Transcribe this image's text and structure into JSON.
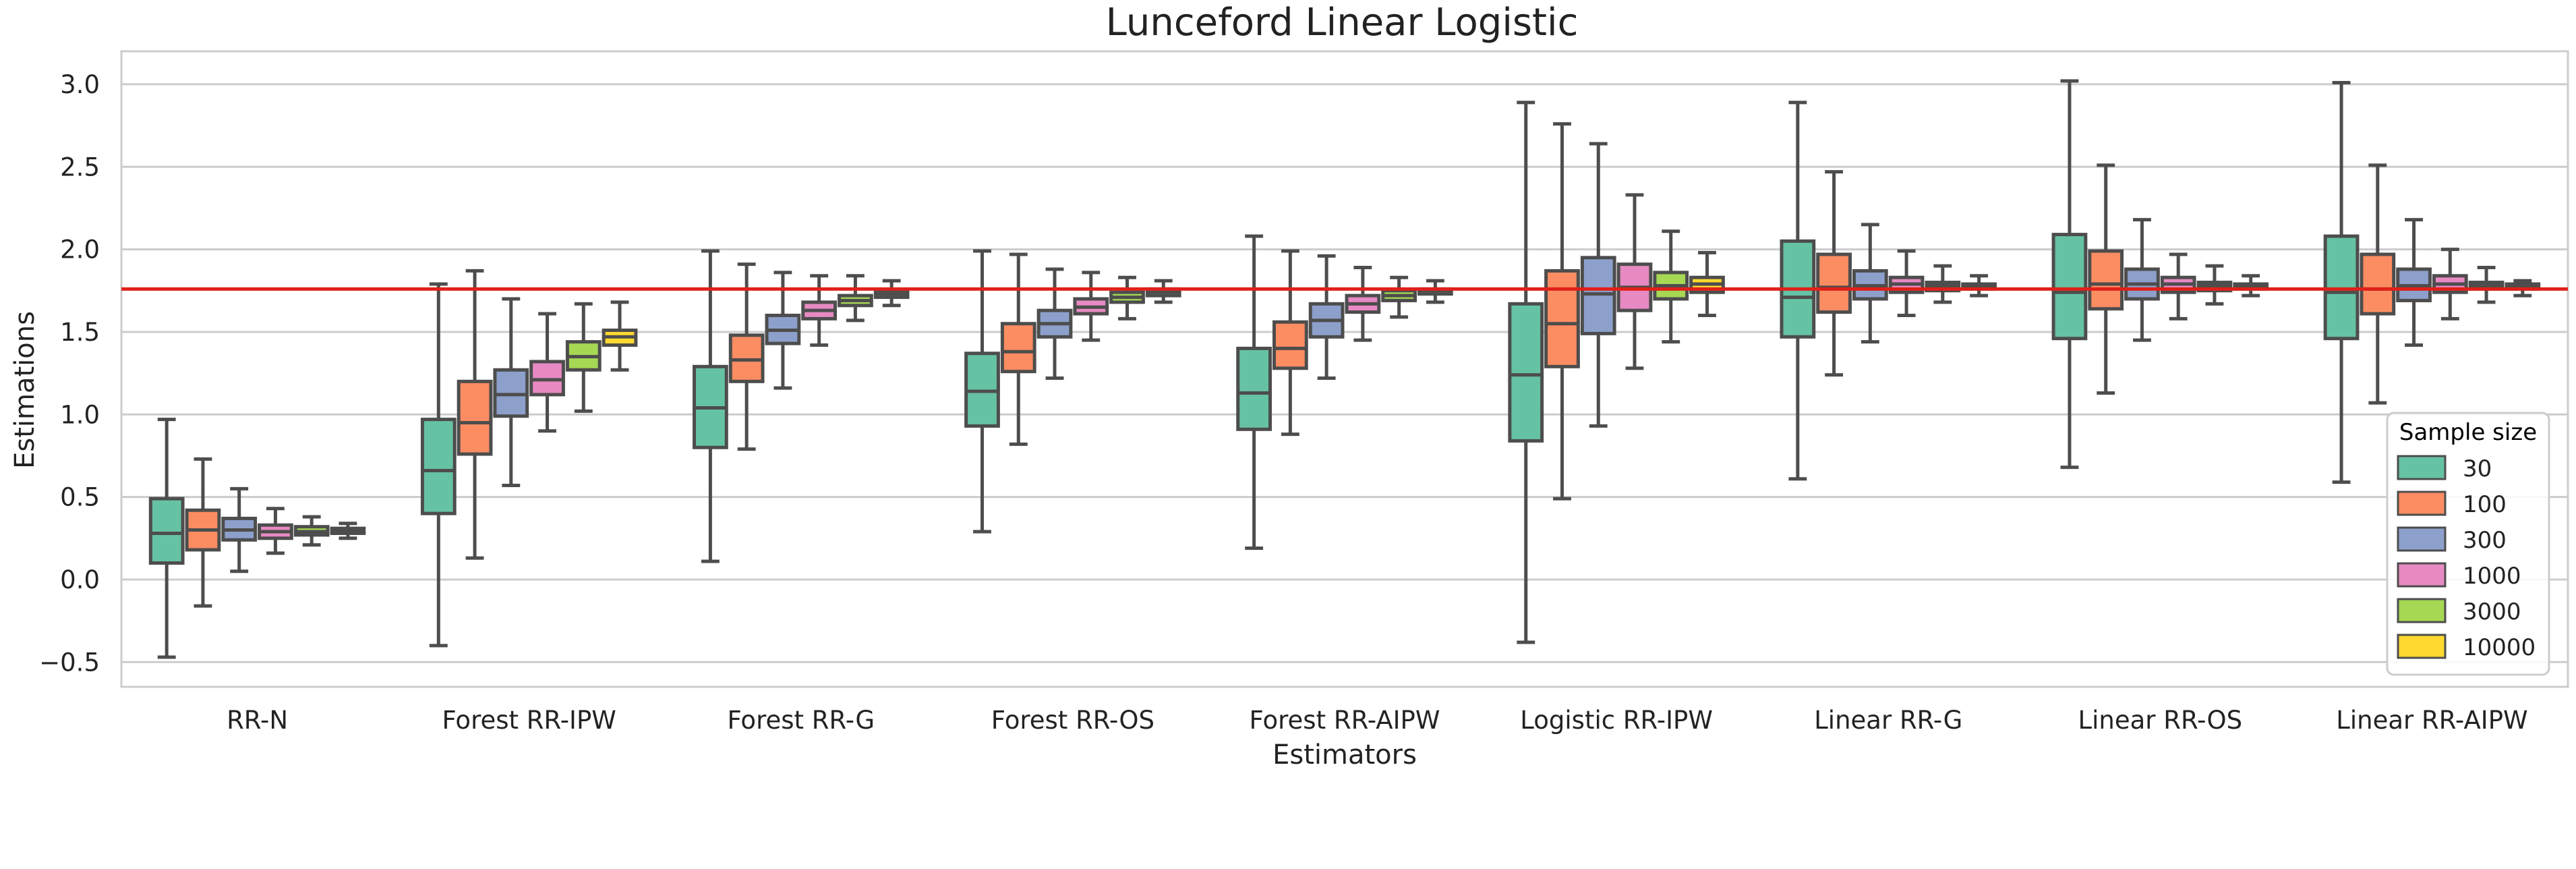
{
  "chart_data": {
    "type": "box",
    "title": "Lunceford Linear Logistic",
    "xlabel": "Estimators",
    "ylabel": "Estimations",
    "ylim": [
      -0.65,
      3.2
    ],
    "yticks": [
      "−0.5",
      "0.0",
      "0.5",
      "1.0",
      "1.5",
      "2.0",
      "2.5",
      "3.0"
    ],
    "ytick_values": [
      -0.5,
      0,
      0.5,
      1.0,
      1.5,
      2.0,
      2.5,
      3.0
    ],
    "grid": true,
    "reference_line": 1.76,
    "reference_color": "#e0201a",
    "legend_title": "Sample size",
    "legend_position": "lower-right",
    "categories": [
      "RR-N",
      "Forest RR-IPW",
      "Forest RR-G",
      "Forest RR-OS",
      "Forest RR-AIPW",
      "Logistic RR-IPW",
      "Linear RR-G",
      "Linear RR-OS",
      "Linear RR-AIPW"
    ],
    "series": [
      {
        "name": "30",
        "color": "#66c2a5",
        "boxes": [
          [
            -0.47,
            0.1,
            0.28,
            0.49,
            0.97
          ],
          [
            -0.4,
            0.4,
            0.66,
            0.97,
            1.79
          ],
          [
            0.11,
            0.8,
            1.04,
            1.29,
            1.99
          ],
          [
            0.29,
            0.93,
            1.14,
            1.37,
            1.99
          ],
          [
            0.19,
            0.91,
            1.13,
            1.4,
            2.08
          ],
          [
            -0.38,
            0.84,
            1.24,
            1.67,
            2.89
          ],
          [
            0.61,
            1.47,
            1.71,
            2.05,
            2.89
          ],
          [
            0.68,
            1.46,
            1.74,
            2.09,
            3.02
          ],
          [
            0.59,
            1.46,
            1.74,
            2.08,
            3.01
          ]
        ]
      },
      {
        "name": "100",
        "color": "#fc8d62",
        "boxes": [
          [
            -0.16,
            0.18,
            0.3,
            0.42,
            0.73
          ],
          [
            0.13,
            0.76,
            0.95,
            1.2,
            1.87
          ],
          [
            0.79,
            1.2,
            1.33,
            1.48,
            1.91
          ],
          [
            0.82,
            1.26,
            1.38,
            1.55,
            1.97
          ],
          [
            0.88,
            1.28,
            1.4,
            1.56,
            1.99
          ],
          [
            0.49,
            1.29,
            1.55,
            1.87,
            2.76
          ],
          [
            1.24,
            1.62,
            1.77,
            1.97,
            2.47
          ],
          [
            1.13,
            1.64,
            1.79,
            1.99,
            2.51
          ],
          [
            1.07,
            1.61,
            1.76,
            1.97,
            2.51
          ]
        ]
      },
      {
        "name": "300",
        "color": "#8da0cb",
        "boxes": [
          [
            0.05,
            0.24,
            0.3,
            0.37,
            0.55
          ],
          [
            0.57,
            0.99,
            1.12,
            1.27,
            1.7
          ],
          [
            1.16,
            1.43,
            1.51,
            1.6,
            1.86
          ],
          [
            1.22,
            1.47,
            1.55,
            1.63,
            1.88
          ],
          [
            1.22,
            1.47,
            1.57,
            1.67,
            1.96
          ],
          [
            0.93,
            1.49,
            1.73,
            1.95,
            2.64
          ],
          [
            1.44,
            1.7,
            1.78,
            1.87,
            2.15
          ],
          [
            1.45,
            1.7,
            1.79,
            1.88,
            2.18
          ],
          [
            1.42,
            1.69,
            1.78,
            1.88,
            2.18
          ]
        ]
      },
      {
        "name": "1000",
        "color": "#e78ac3",
        "boxes": [
          [
            0.16,
            0.25,
            0.29,
            0.33,
            0.43
          ],
          [
            0.9,
            1.12,
            1.21,
            1.32,
            1.61
          ],
          [
            1.42,
            1.58,
            1.63,
            1.68,
            1.84
          ],
          [
            1.45,
            1.61,
            1.65,
            1.7,
            1.86
          ],
          [
            1.45,
            1.62,
            1.67,
            1.72,
            1.89
          ],
          [
            1.28,
            1.63,
            1.77,
            1.91,
            2.33
          ],
          [
            1.6,
            1.74,
            1.79,
            1.83,
            1.99
          ],
          [
            1.58,
            1.74,
            1.79,
            1.83,
            1.97
          ],
          [
            1.58,
            1.74,
            1.79,
            1.84,
            2.0
          ]
        ]
      },
      {
        "name": "3000",
        "color": "#a6d854",
        "boxes": [
          [
            0.21,
            0.27,
            0.29,
            0.32,
            0.38
          ],
          [
            1.02,
            1.27,
            1.35,
            1.44,
            1.67
          ],
          [
            1.57,
            1.66,
            1.69,
            1.72,
            1.84
          ],
          [
            1.58,
            1.68,
            1.71,
            1.74,
            1.83
          ],
          [
            1.59,
            1.69,
            1.72,
            1.75,
            1.83
          ],
          [
            1.44,
            1.7,
            1.78,
            1.86,
            2.11
          ],
          [
            1.68,
            1.75,
            1.78,
            1.8,
            1.9
          ],
          [
            1.67,
            1.75,
            1.78,
            1.8,
            1.9
          ],
          [
            1.68,
            1.76,
            1.78,
            1.8,
            1.89
          ]
        ]
      },
      {
        "name": "10000",
        "color": "#ffd92f",
        "boxes": [
          [
            0.25,
            0.28,
            0.29,
            0.31,
            0.34
          ],
          [
            1.27,
            1.42,
            1.47,
            1.51,
            1.68
          ],
          [
            1.66,
            1.71,
            1.73,
            1.75,
            1.81
          ],
          [
            1.68,
            1.72,
            1.74,
            1.76,
            1.81
          ],
          [
            1.68,
            1.73,
            1.75,
            1.76,
            1.81
          ],
          [
            1.6,
            1.74,
            1.79,
            1.83,
            1.98
          ],
          [
            1.72,
            1.76,
            1.78,
            1.79,
            1.84
          ],
          [
            1.72,
            1.76,
            1.78,
            1.79,
            1.84
          ],
          [
            1.72,
            1.76,
            1.77,
            1.79,
            1.81
          ]
        ]
      }
    ]
  }
}
